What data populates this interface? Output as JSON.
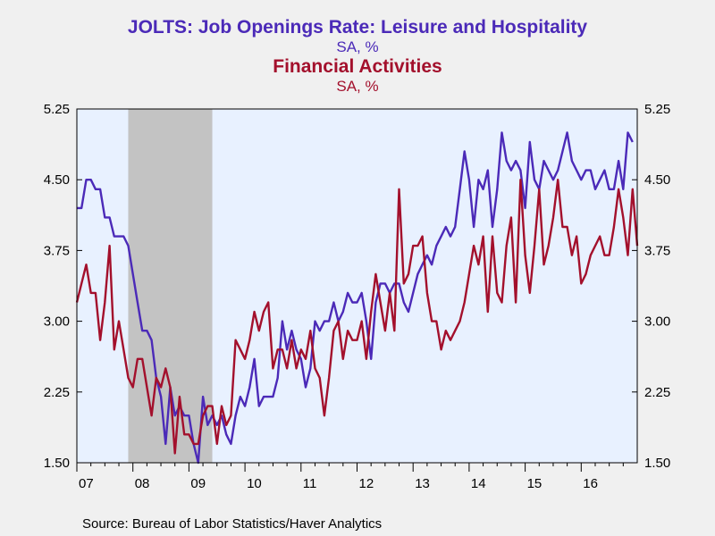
{
  "chart_data": {
    "type": "line",
    "title_series1": "JOLTS: Job Openings Rate: Leisure and Hospitality",
    "subtitle_series1": "SA, %",
    "title_series2": "Financial Activities",
    "subtitle_series2": "SA, %",
    "ylim": [
      1.5,
      5.25
    ],
    "y_ticks": [
      "5.25",
      "4.50",
      "3.75",
      "3.00",
      "2.25",
      "1.50"
    ],
    "y_tick_values": [
      5.25,
      4.5,
      3.75,
      3.0,
      2.25,
      1.5
    ],
    "x_tick_labels": [
      "07",
      "08",
      "09",
      "10",
      "11",
      "12",
      "13",
      "14",
      "15",
      "16"
    ],
    "x_range_months": [
      "2007-01",
      "2017-01"
    ],
    "recession_shading": [
      "2007-12",
      "2009-06"
    ],
    "grid": false,
    "series": [
      {
        "name": "Leisure and Hospitality",
        "color": "#4b2ab8",
        "start": "2007-01",
        "values": [
          4.2,
          4.2,
          4.5,
          4.5,
          4.4,
          4.4,
          4.1,
          4.1,
          3.9,
          3.9,
          3.9,
          3.8,
          3.5,
          3.2,
          2.9,
          2.9,
          2.8,
          2.4,
          2.2,
          1.7,
          2.3,
          2.0,
          2.1,
          2.0,
          2.0,
          1.7,
          1.5,
          2.2,
          1.9,
          2.0,
          1.9,
          2.0,
          1.8,
          1.7,
          2.0,
          2.2,
          2.1,
          2.3,
          2.6,
          2.1,
          2.2,
          2.2,
          2.2,
          2.4,
          3.0,
          2.7,
          2.9,
          2.7,
          2.6,
          2.3,
          2.5,
          3.0,
          2.9,
          3.0,
          3.0,
          3.2,
          3.0,
          3.1,
          3.3,
          3.2,
          3.2,
          3.3,
          3.0,
          2.6,
          3.2,
          3.4,
          3.4,
          3.3,
          3.4,
          3.4,
          3.2,
          3.1,
          3.3,
          3.5,
          3.6,
          3.7,
          3.6,
          3.8,
          3.9,
          4.0,
          3.9,
          4.0,
          4.4,
          4.8,
          4.5,
          4.0,
          4.5,
          4.4,
          4.6,
          4.0,
          4.4,
          5.0,
          4.7,
          4.6,
          4.7,
          4.6,
          4.2,
          4.9,
          4.5,
          4.4,
          4.7,
          4.6,
          4.5,
          4.6,
          4.8,
          5.0,
          4.7,
          4.6,
          4.5,
          4.6,
          4.6,
          4.4,
          4.5,
          4.6,
          4.4,
          4.4,
          4.7,
          4.4,
          5.0,
          4.9
        ]
      },
      {
        "name": "Financial Activities",
        "color": "#a3102c",
        "start": "2007-01",
        "values": [
          3.2,
          3.4,
          3.6,
          3.3,
          3.3,
          2.8,
          3.2,
          3.8,
          2.7,
          3.0,
          2.7,
          2.4,
          2.3,
          2.6,
          2.6,
          2.3,
          2.0,
          2.4,
          2.3,
          2.5,
          2.3,
          1.6,
          2.2,
          1.8,
          1.8,
          1.7,
          1.7,
          2.0,
          2.1,
          2.1,
          1.7,
          2.1,
          1.9,
          2.0,
          2.8,
          2.7,
          2.6,
          2.8,
          3.1,
          2.9,
          3.1,
          3.2,
          2.5,
          2.7,
          2.7,
          2.5,
          2.8,
          2.5,
          2.7,
          2.6,
          2.9,
          2.5,
          2.4,
          2.0,
          2.4,
          2.9,
          3.0,
          2.6,
          2.9,
          2.8,
          2.8,
          3.0,
          2.6,
          3.1,
          3.5,
          3.2,
          2.9,
          3.3,
          2.9,
          4.4,
          3.4,
          3.5,
          3.8,
          3.8,
          3.9,
          3.3,
          3.0,
          3.0,
          2.7,
          2.9,
          2.8,
          2.9,
          3.0,
          3.2,
          3.5,
          3.8,
          3.6,
          3.9,
          3.1,
          3.9,
          3.3,
          3.2,
          3.8,
          4.1,
          3.2,
          4.5,
          3.7,
          3.3,
          3.8,
          4.4,
          3.6,
          3.8,
          4.1,
          4.5,
          4.0,
          4.0,
          3.7,
          3.9,
          3.4,
          3.5,
          3.7,
          3.8,
          3.9,
          3.7,
          3.7,
          4.0,
          4.4,
          4.1,
          3.7,
          4.4,
          3.8
        ]
      }
    ]
  },
  "source": "Source:  Bureau of Labor Statistics/Haver Analytics"
}
